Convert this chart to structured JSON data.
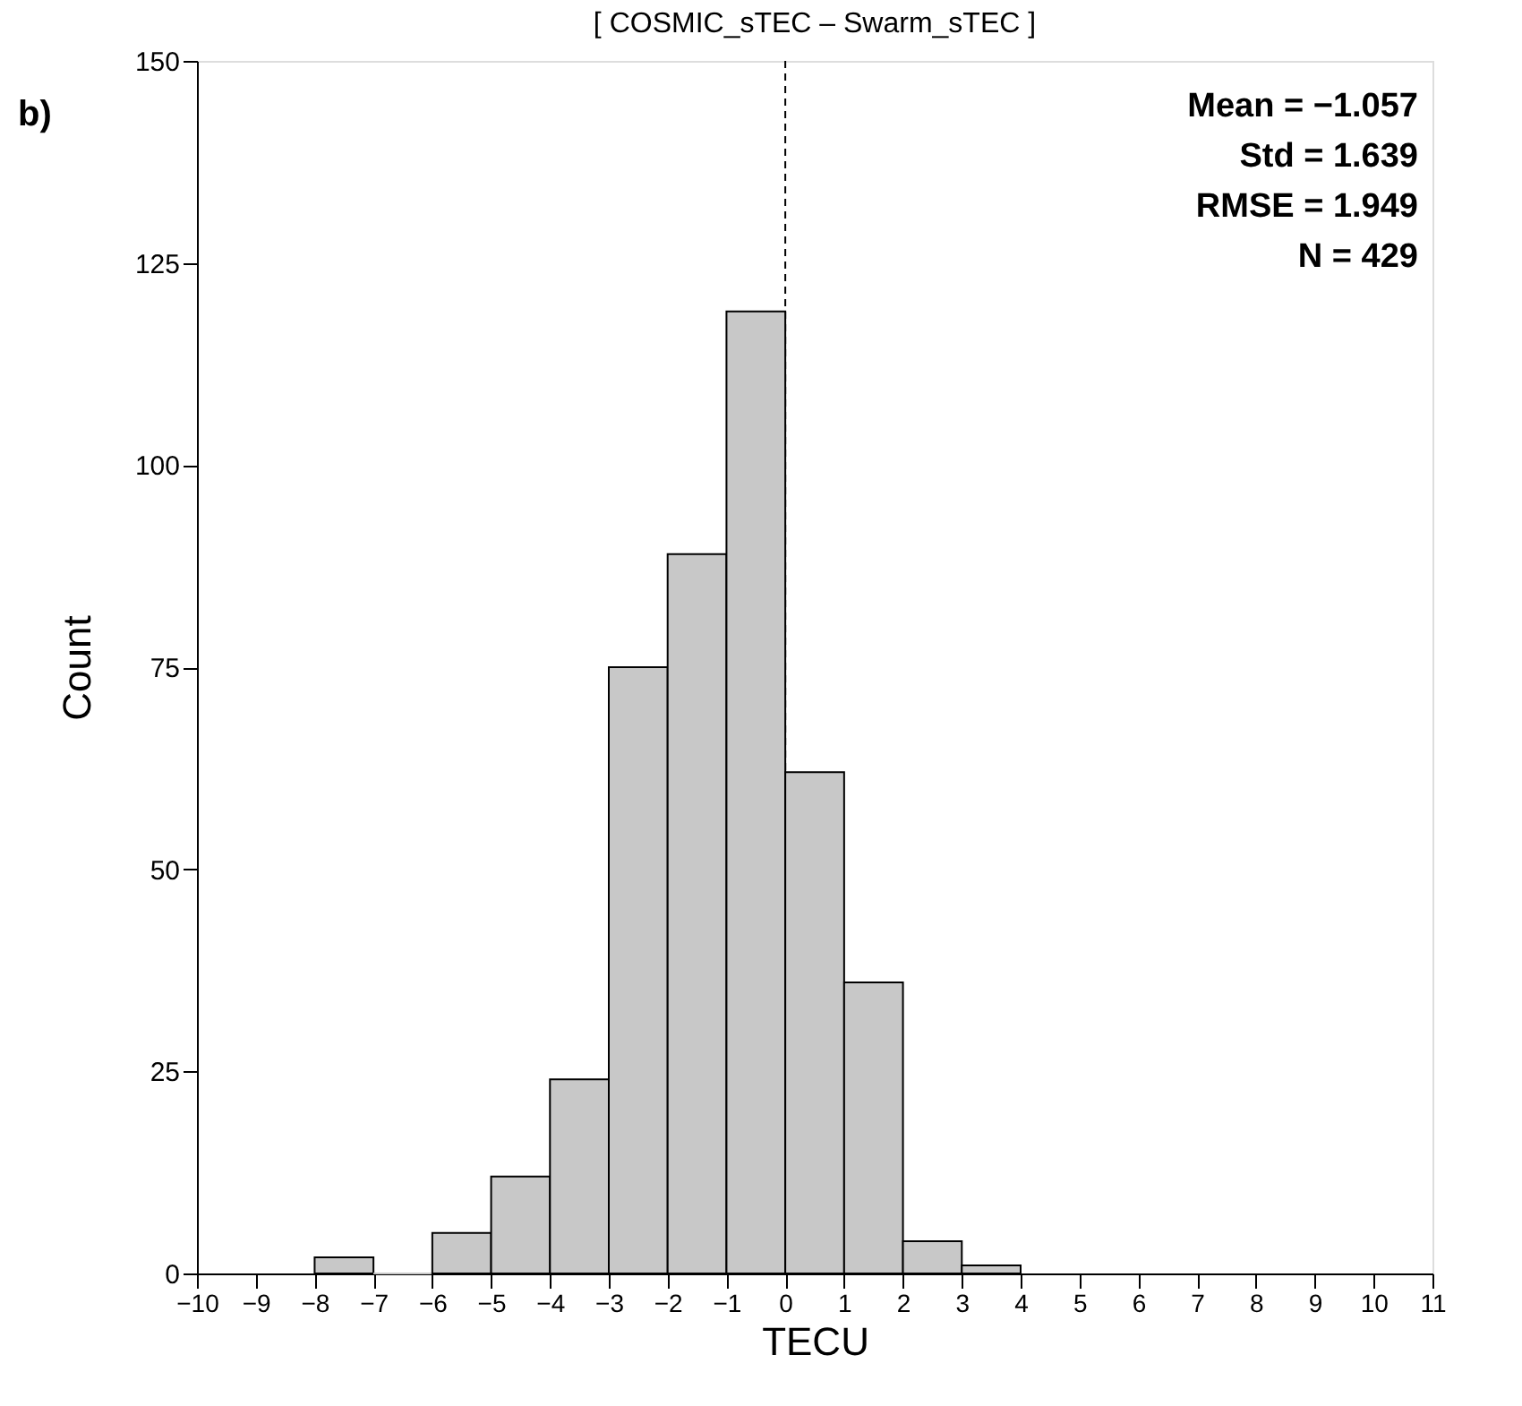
{
  "chart_data": {
    "type": "histogram",
    "title": "[ COSMIC_sTEC – Swarm_sTEC ]",
    "xlabel": "TECU",
    "ylabel": "Count",
    "bins": [
      -8,
      -7,
      -6,
      -5,
      -4,
      -3,
      -2,
      -1,
      0,
      1,
      2,
      3,
      4
    ],
    "values": [
      2,
      0,
      5,
      12,
      24,
      75,
      89,
      119,
      62,
      36,
      4,
      1
    ],
    "color": "#c8c8c8",
    "xlim": [
      -10,
      11
    ],
    "xticks": [
      -10,
      -9,
      -8,
      -7,
      -6,
      -5,
      -4,
      -3,
      -2,
      -1,
      0,
      1,
      2,
      3,
      4,
      5,
      6,
      7,
      8,
      9,
      10,
      11
    ],
    "ylim": [
      0,
      150
    ],
    "yticks": [
      0,
      25,
      50,
      75,
      100,
      125,
      150
    ],
    "grid": false,
    "ref_lines": [
      {
        "axis": "x",
        "value": 0,
        "line_style": "dashed",
        "color": "#000000"
      }
    ],
    "annotations": [
      "b)",
      "Mean = −1.057",
      "Std = 1.639",
      "RMSE = 1.949",
      "N = 429"
    ]
  }
}
